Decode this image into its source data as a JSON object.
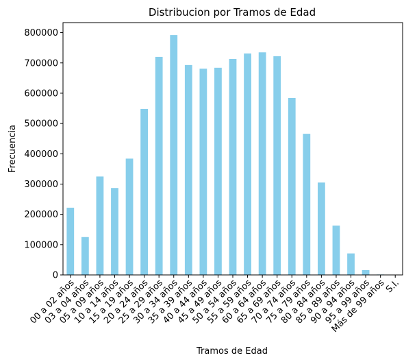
{
  "chart_data": {
    "type": "bar",
    "title": "Distribucion por Tramos de Edad",
    "xlabel": "Tramos de Edad",
    "ylabel": "Frecuencia",
    "categories": [
      "00 a 02 años",
      "03 a 04 años",
      "05 a 09 años",
      "10 a 14 años",
      "15 a 19 años",
      "20 a 24 años",
      "25 a 29 años",
      "30 a 34 años",
      "35 a 39 años",
      "40 a 44 años",
      "45 a 49 años",
      "50 a 54 años",
      "55 a 59 años",
      "60 a 64 años",
      "65 a 69 años",
      "70 a 74 años",
      "75 a 79 años",
      "80 a 84 años",
      "85 a 89 años",
      "90 a 94 años",
      "95 a 99 años",
      "Más de 99 años",
      "S.I."
    ],
    "values": [
      222000,
      125000,
      325000,
      287000,
      384000,
      548000,
      720000,
      792000,
      693000,
      681000,
      684000,
      713000,
      731000,
      735000,
      722000,
      584000,
      466000,
      305000,
      163000,
      71000,
      16000,
      1500,
      500
    ],
    "ylim": [
      0,
      833000
    ],
    "yticks": [
      0,
      100000,
      200000,
      300000,
      400000,
      500000,
      600000,
      700000,
      800000
    ],
    "grid": false,
    "legend": "none",
    "bar_color": "#87ceeb"
  }
}
